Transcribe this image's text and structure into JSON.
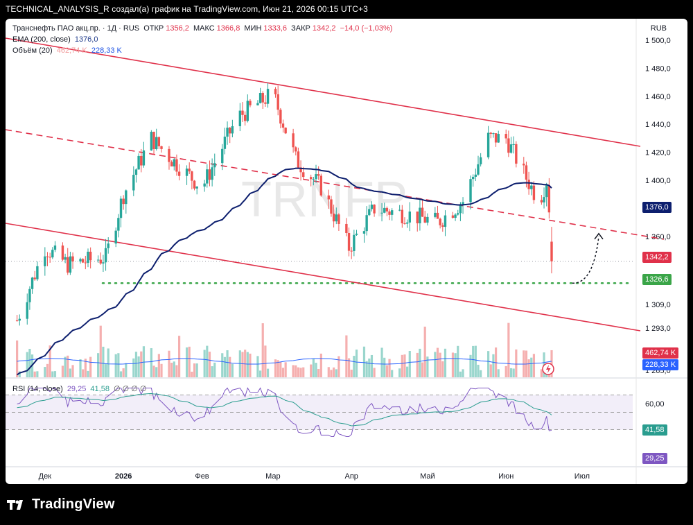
{
  "header": {
    "caption": "TECHNICAL_ANALYSIS_R создал(а) график на TradingView.com, Июн 21, 2026 00:15 UTC+3"
  },
  "legend": {
    "symbol": "Транснефть ПАО акц.пр. · 1Д · RUS",
    "open_label": "ОТКР",
    "open": "1356,2",
    "high_label": "МАКС",
    "high": "1366,8",
    "low_label": "МИН",
    "low": "1333,6",
    "close_label": "ЗАКР",
    "close": "1342,2",
    "change": "−14,0 (−1,03%)",
    "ema_label": "EMA (200, close)",
    "ema_value": "1376,0",
    "vol_label": "Объём (20)",
    "vol_value1": "462,74 K",
    "vol_value2": "228,33 K",
    "rsi_label": "RSI (14, close)",
    "rsi_value1": "29,25",
    "rsi_value2": "41,58",
    "rsi_na": "∅ ∅ ∅ ∅"
  },
  "unit": "RUB",
  "watermark": "TRNFP",
  "tags": {
    "ema": "1376,0",
    "close": "1342,2",
    "support": "1326,6",
    "vol1": "462,74 K",
    "vol2": "228,33 K",
    "rsi_ma": "41,58",
    "rsi": "29,25"
  },
  "footer": {
    "brand": "TradingView"
  },
  "colors": {
    "up": "#26a69a",
    "down": "#ef5350",
    "ema": "#0d1f6e",
    "channel": "#e0314a",
    "support": "#3aa548",
    "rsi": "#7e57c2",
    "rsi_ma": "#2a9d8f",
    "vol_ma": "#2962ff"
  },
  "chart_data": {
    "type": "candlestick",
    "symbol": "Транснефть ПАО акц.пр.",
    "interval": "1Д",
    "ylim": [
      1260,
      1505
    ],
    "y_ticks": [
      "1 500,0",
      "1 480,0",
      "1 460,0",
      "1 440,0",
      "1 420,0",
      "1 400,0",
      "1 380,0",
      "1 360,0",
      "1 309,0",
      "1 293,0",
      "1 273,0",
      "1 265,0"
    ],
    "x_ticks": [
      "Дек",
      "2026",
      "Фев",
      "Мар",
      "Апр",
      "Май",
      "Июн",
      "Июл"
    ],
    "key_closes": [
      {
        "date": "2025-11-20",
        "close": 1300
      },
      {
        "date": "2025-12-01",
        "close": 1352
      },
      {
        "date": "2025-12-10",
        "close": 1340
      },
      {
        "date": "2025-12-25",
        "close": 1345
      },
      {
        "date": "2026-01-01",
        "close": 1390
      },
      {
        "date": "2026-01-12",
        "close": 1430
      },
      {
        "date": "2026-01-20",
        "close": 1415
      },
      {
        "date": "2026-02-01",
        "close": 1395
      },
      {
        "date": "2026-02-15",
        "close": 1445
      },
      {
        "date": "2026-03-01",
        "close": 1462
      },
      {
        "date": "2026-03-10",
        "close": 1415
      },
      {
        "date": "2026-03-20",
        "close": 1395
      },
      {
        "date": "2026-03-31",
        "close": 1352
      },
      {
        "date": "2026-04-10",
        "close": 1380
      },
      {
        "date": "2026-04-25",
        "close": 1375
      },
      {
        "date": "2026-05-05",
        "close": 1370
      },
      {
        "date": "2026-05-15",
        "close": 1385
      },
      {
        "date": "2026-05-25",
        "close": 1430
      },
      {
        "date": "2026-06-01",
        "close": 1430
      },
      {
        "date": "2026-06-08",
        "close": 1405
      },
      {
        "date": "2026-06-14",
        "close": 1385
      },
      {
        "date": "2026-06-17",
        "close": 1400
      },
      {
        "date": "2026-06-20",
        "close": 1342.2
      }
    ],
    "last_bar": {
      "open": 1356.2,
      "high": 1366.8,
      "low": 1333.6,
      "close": 1342.2,
      "change": -14.0,
      "change_pct": -1.03
    },
    "ema200_last": 1376.0,
    "support_level": 1326.6,
    "volume": {
      "last": 462740,
      "ma20": 228330
    },
    "rsi": {
      "length": 14,
      "value": 29.25,
      "ma": 41.58,
      "levels": [
        70,
        50,
        30
      ],
      "tick": "60,00"
    }
  }
}
